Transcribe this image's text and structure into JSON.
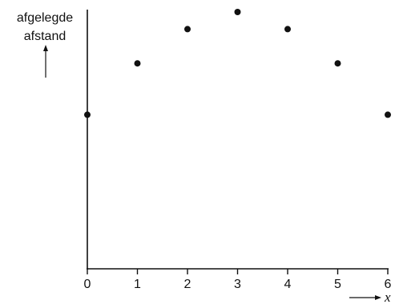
{
  "chart_data": {
    "type": "scatter",
    "x": [
      0,
      1,
      2,
      3,
      4,
      5,
      6
    ],
    "y": [
      9,
      12,
      14,
      15,
      14,
      12,
      9
    ],
    "x_ticks": [
      "0",
      "1",
      "2",
      "3",
      "4",
      "5",
      "6"
    ],
    "xlim": [
      0,
      6
    ],
    "ylim": [
      0,
      15
    ],
    "ylabel_lines": [
      "afgelegde",
      "afstand"
    ],
    "xlabel": "x",
    "grid": false,
    "y_ticks_shown": false,
    "point_color": "#111111",
    "axis_color": "#111111"
  }
}
